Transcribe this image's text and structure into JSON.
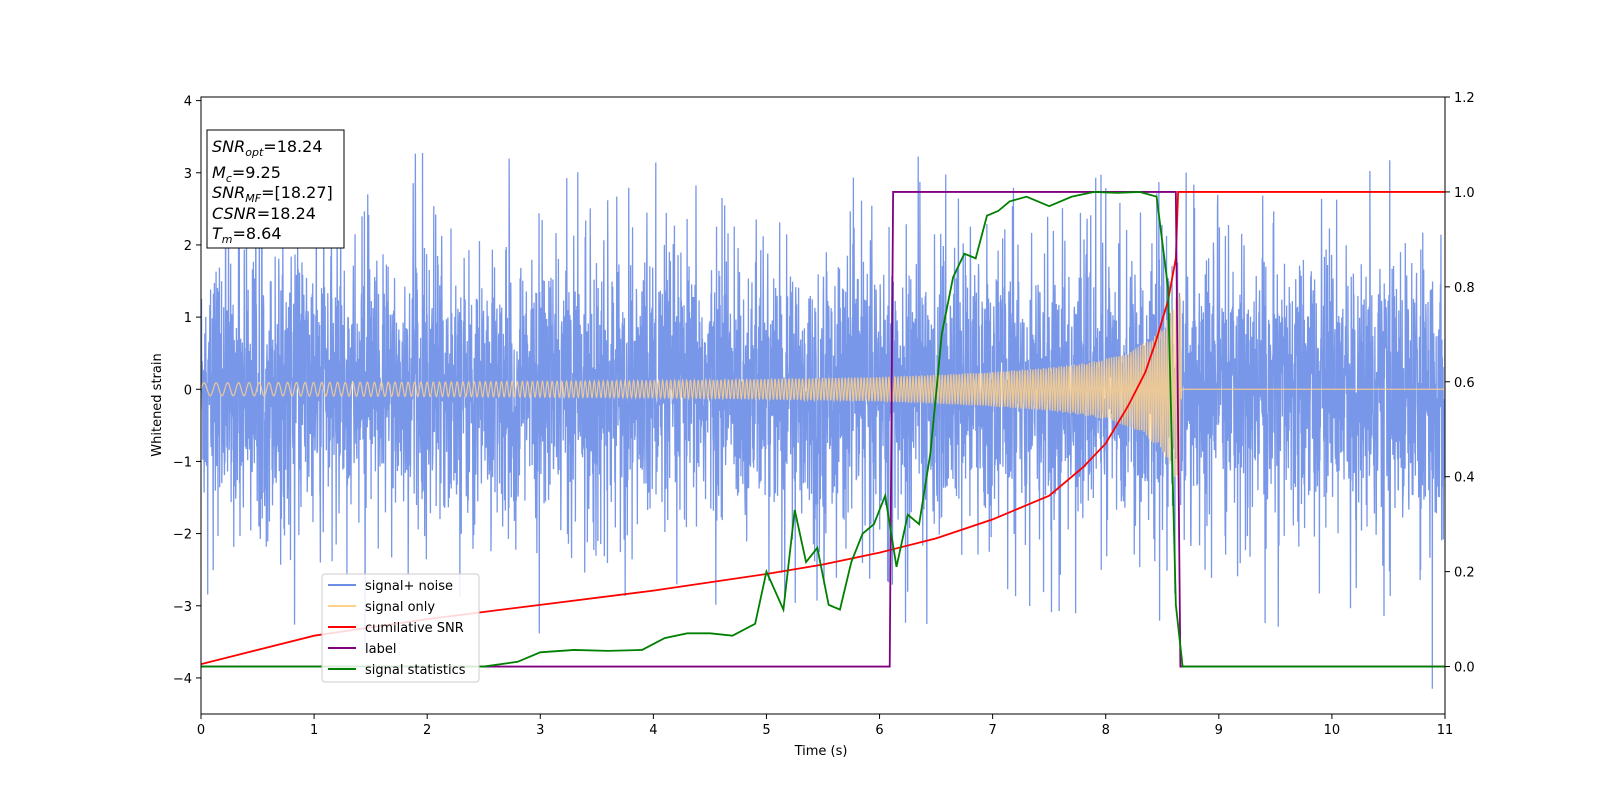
{
  "chart_data": {
    "type": "line",
    "xlabel": "Time (s)",
    "ylabel": "Whitened strain",
    "xlim": [
      0,
      11
    ],
    "ylim_left": [
      -4.5,
      4.05
    ],
    "ylim_right": [
      -0.1,
      1.2
    ],
    "x_ticks": [
      "0",
      "1",
      "2",
      "3",
      "4",
      "5",
      "6",
      "7",
      "8",
      "9",
      "10",
      "11"
    ],
    "y_left_ticks": [
      "−4",
      "−3",
      "−2",
      "−1",
      "0",
      "1",
      "2",
      "3",
      "4"
    ],
    "y_right_ticks": [
      "0.0",
      "0.2",
      "0.4",
      "0.6",
      "0.8",
      "1.0",
      "1.2"
    ],
    "legend": {
      "placement": "lower-left",
      "entries": [
        {
          "label": "signal+ noise",
          "color": "#6e8ee6"
        },
        {
          "label": "signal only",
          "color": "#ffd08a"
        },
        {
          "label": "cumilative SNR",
          "color": "#ff0000"
        },
        {
          "label": "label",
          "color": "#800080"
        },
        {
          "label": "signal statistics",
          "color": "#008000"
        }
      ]
    },
    "info_box": {
      "snr_opt": "SNR",
      "snr_opt_sub": "opt",
      "snr_opt_val": "=18.24",
      "mc": "M",
      "mc_sub": "c",
      "mc_val": "=9.25",
      "snr_mf": "SNR",
      "snr_mf_sub": "MF",
      "snr_mf_val": "=[18.27]",
      "csnr": "CSNR",
      "csnr_val": "=18.24",
      "tm": "T",
      "tm_sub": "m",
      "tm_val": "=8.64"
    },
    "series_label": {
      "axis": "right",
      "x": [
        0,
        6.09,
        6.12,
        8.62,
        8.66,
        11
      ],
      "y": [
        0,
        0,
        1,
        1,
        0,
        0
      ]
    },
    "series_signal_statistics": {
      "axis": "right",
      "x": [
        0,
        1,
        2,
        2.5,
        2.8,
        3,
        3.3,
        3.6,
        3.9,
        4.1,
        4.3,
        4.5,
        4.7,
        4.9,
        5.0,
        5.15,
        5.25,
        5.35,
        5.45,
        5.55,
        5.65,
        5.75,
        5.85,
        5.95,
        6.05,
        6.15,
        6.25,
        6.35,
        6.45,
        6.55,
        6.65,
        6.75,
        6.85,
        6.95,
        7.05,
        7.15,
        7.3,
        7.5,
        7.7,
        7.9,
        8.1,
        8.3,
        8.45,
        8.55,
        8.62,
        8.68,
        11
      ],
      "y": [
        0,
        0,
        0,
        0,
        0.01,
        0.03,
        0.035,
        0.033,
        0.035,
        0.06,
        0.07,
        0.07,
        0.065,
        0.09,
        0.2,
        0.12,
        0.33,
        0.22,
        0.25,
        0.13,
        0.12,
        0.22,
        0.28,
        0.3,
        0.36,
        0.21,
        0.32,
        0.3,
        0.45,
        0.7,
        0.82,
        0.87,
        0.86,
        0.95,
        0.96,
        0.98,
        0.99,
        0.97,
        0.99,
        1.0,
        0.998,
        1.0,
        0.99,
        0.8,
        0.13,
        0.0,
        0.0
      ]
    },
    "series_cumulative_snr": {
      "axis": "right",
      "x": [
        0,
        1,
        2,
        3,
        4,
        5,
        5.5,
        6,
        6.5,
        7,
        7.5,
        7.8,
        8.0,
        8.2,
        8.35,
        8.45,
        8.55,
        8.62,
        8.64,
        11
      ],
      "y": [
        0.005,
        0.065,
        0.1,
        0.13,
        0.16,
        0.195,
        0.215,
        0.24,
        0.27,
        0.31,
        0.36,
        0.42,
        0.47,
        0.55,
        0.62,
        0.69,
        0.77,
        0.86,
        1.0,
        1.0
      ]
    },
    "signal_only_envelope": {
      "axis": "left",
      "x": [
        0,
        2,
        4,
        5,
        6,
        6.5,
        7,
        7.5,
        7.8,
        8.0,
        8.2,
        8.35,
        8.5,
        8.6,
        8.66,
        8.67,
        11
      ],
      "amplitude": [
        0.09,
        0.1,
        0.12,
        0.14,
        0.17,
        0.2,
        0.24,
        0.3,
        0.36,
        0.42,
        0.52,
        0.65,
        0.85,
        1.2,
        1.45,
        0,
        0
      ]
    },
    "signal_plus_noise": {
      "axis": "left",
      "band_std": 0.9,
      "max_spike": 3.4,
      "min_spike": -4.15
    }
  }
}
